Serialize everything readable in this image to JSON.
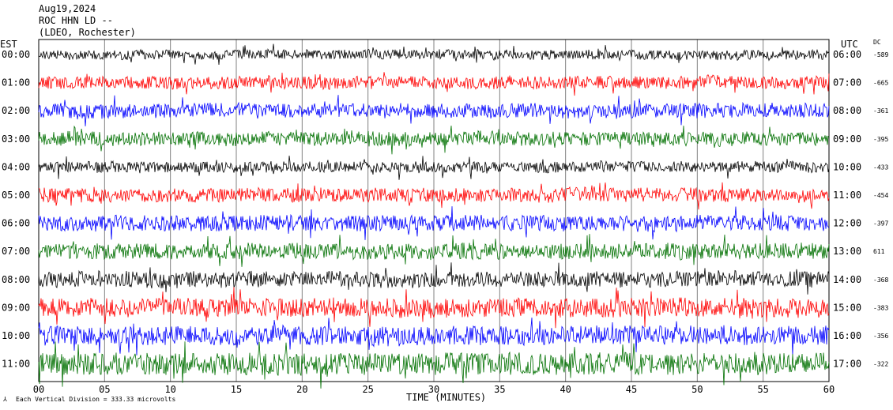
{
  "header": {
    "date": "Aug19,2024",
    "station": "ROC HHN LD --",
    "location": "(LDEO, Rochester)"
  },
  "left_axis_title": "EST",
  "right_axis_title": "UTC",
  "dc_title": "DC",
  "footer_note": "Each Vertical Division =  333.33 microvolts",
  "colors": [
    "#000000",
    "#ff0000",
    "#0000ff",
    "#007000"
  ],
  "chart_data": {
    "type": "line",
    "title": "Aug19,2024 ROC HHN LD -- (LDEO, Rochester)",
    "xlabel": "TIME (MINUTES)",
    "xlim": [
      0,
      60
    ],
    "x_ticks": [
      "00",
      "05",
      "10",
      "15",
      "20",
      "25",
      "30",
      "35",
      "40",
      "45",
      "50",
      "55",
      "60"
    ],
    "grid": "vertical every 5 minutes",
    "series": [
      {
        "est": "00:00",
        "utc": "06:00",
        "dc": "-589",
        "color": "#000000",
        "amplitude": 6
      },
      {
        "est": "01:00",
        "utc": "07:00",
        "dc": "-665",
        "color": "#ff0000",
        "amplitude": 8
      },
      {
        "est": "02:00",
        "utc": "08:00",
        "dc": "-361",
        "color": "#0000ff",
        "amplitude": 9
      },
      {
        "est": "03:00",
        "utc": "09:00",
        "dc": "-395",
        "color": "#007000",
        "amplitude": 9
      },
      {
        "est": "04:00",
        "utc": "10:00",
        "dc": "-433",
        "color": "#000000",
        "amplitude": 7
      },
      {
        "est": "05:00",
        "utc": "11:00",
        "dc": "-454",
        "color": "#ff0000",
        "amplitude": 9
      },
      {
        "est": "06:00",
        "utc": "12:00",
        "dc": "-397",
        "color": "#0000ff",
        "amplitude": 10
      },
      {
        "est": "07:00",
        "utc": "13:00",
        "dc": "611",
        "color": "#007000",
        "amplitude": 10
      },
      {
        "est": "08:00",
        "utc": "14:00",
        "dc": "-368",
        "color": "#000000",
        "amplitude": 10
      },
      {
        "est": "09:00",
        "utc": "15:00",
        "dc": "-383",
        "color": "#ff0000",
        "amplitude": 12
      },
      {
        "est": "10:00",
        "utc": "16:00",
        "dc": "-356",
        "color": "#0000ff",
        "amplitude": 12
      },
      {
        "est": "11:00",
        "utc": "17:00",
        "dc": "-322",
        "color": "#007000",
        "amplitude": 14
      }
    ]
  }
}
